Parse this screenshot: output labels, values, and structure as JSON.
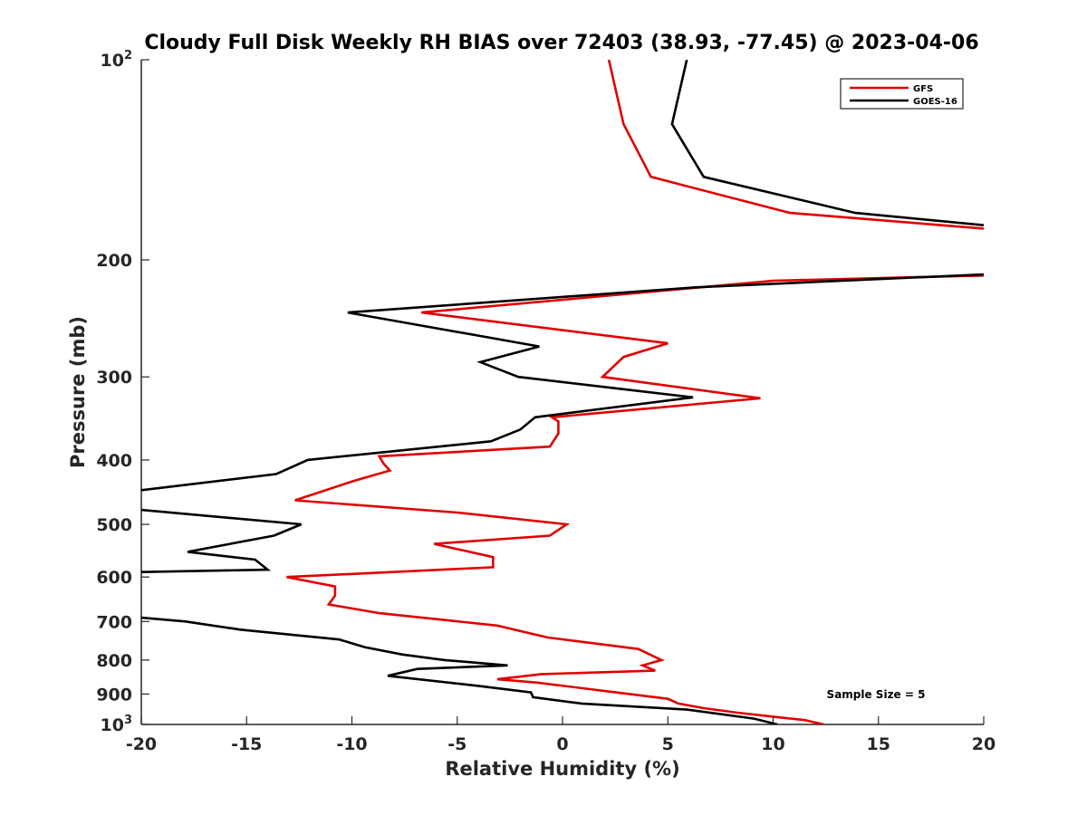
{
  "chart_data": {
    "type": "line",
    "title": "Cloudy Full Disk Weekly RH BIAS over 72403 (38.93, -77.45) @ 2023-04-06",
    "xlabel": "Relative Humidity (%)",
    "ylabel": "Pressure (mb)",
    "xlim": [
      -20,
      20
    ],
    "ylim": [
      100,
      1000
    ],
    "yscale": "log",
    "y_reversed": true,
    "grid": false,
    "legend_position": "top-right",
    "xticks": [
      -20,
      -15,
      -10,
      -5,
      0,
      5,
      10,
      15,
      20
    ],
    "yticks": [
      {
        "value": 100,
        "base": "10",
        "exp": "2"
      },
      {
        "value": 200,
        "label": "200"
      },
      {
        "value": 300,
        "label": "300"
      },
      {
        "value": 400,
        "label": "400"
      },
      {
        "value": 500,
        "label": "500"
      },
      {
        "value": 600,
        "label": "600"
      },
      {
        "value": 700,
        "label": "700"
      },
      {
        "value": 800,
        "label": "800"
      },
      {
        "value": 900,
        "label": "900"
      },
      {
        "value": 1000,
        "base": "10",
        "exp": "3"
      }
    ],
    "annotation": "Sample Size = 5",
    "series": [
      {
        "name": "GFS",
        "color": "#e00000",
        "points": [
          [
            2.2,
            100
          ],
          [
            2.9,
            125
          ],
          [
            4.2,
            150
          ],
          [
            10.8,
            170
          ],
          [
            20.5,
            180
          ],
          [
            20.5,
            211
          ],
          [
            10,
            215
          ],
          [
            -6.7,
            240
          ],
          [
            5,
            267
          ],
          [
            2.9,
            280
          ],
          [
            1.9,
            300
          ],
          [
            9.4,
            323
          ],
          [
            -0.5,
            345
          ],
          [
            -0.2,
            350
          ],
          [
            -0.2,
            365
          ],
          [
            -0.6,
            382
          ],
          [
            -8.7,
            395
          ],
          [
            -8.5,
            405
          ],
          [
            -8.2,
            415
          ],
          [
            -9.9,
            430
          ],
          [
            -12.7,
            460
          ],
          [
            -5,
            480
          ],
          [
            0.2,
            500
          ],
          [
            -0.6,
            520
          ],
          [
            -6.1,
            535
          ],
          [
            -3.3,
            560
          ],
          [
            -3.3,
            580
          ],
          [
            -13.1,
            600
          ],
          [
            -10.8,
            620
          ],
          [
            -10.8,
            640
          ],
          [
            -11.1,
            660
          ],
          [
            -8.7,
            680
          ],
          [
            -3.1,
            710
          ],
          [
            -0.7,
            740
          ],
          [
            3.6,
            770
          ],
          [
            4.7,
            800
          ],
          [
            3.8,
            815
          ],
          [
            4.4,
            830
          ],
          [
            -1,
            840
          ],
          [
            -3.1,
            855
          ],
          [
            -1.2,
            865
          ],
          [
            5,
            915
          ],
          [
            5.5,
            930
          ],
          [
            6.7,
            945
          ],
          [
            8.3,
            960
          ],
          [
            10.2,
            975
          ],
          [
            11.5,
            985
          ],
          [
            12.4,
            1000
          ]
        ]
      },
      {
        "name": "GOES-16",
        "color": "#000000",
        "points": [
          [
            5.9,
            100
          ],
          [
            5.2,
            125
          ],
          [
            6.7,
            150
          ],
          [
            13.9,
            170
          ],
          [
            20.5,
            178
          ],
          [
            20.5,
            210
          ],
          [
            6.3,
            220
          ],
          [
            -10.2,
            240
          ],
          [
            -1.1,
            270
          ],
          [
            -3.9,
            285
          ],
          [
            -2.1,
            300
          ],
          [
            6.2,
            322
          ],
          [
            -1.3,
            345
          ],
          [
            -2,
            360
          ],
          [
            -3.4,
            375
          ],
          [
            -12.1,
            400
          ],
          [
            -13.6,
            420
          ],
          [
            -20.2,
            445
          ],
          [
            -20.2,
            475
          ],
          [
            -12.4,
            500
          ],
          [
            -13.7,
            520
          ],
          [
            -17.8,
            550
          ],
          [
            -14.6,
            565
          ],
          [
            -14,
            585
          ],
          [
            -20.2,
            590
          ],
          [
            -20.2,
            690
          ],
          [
            -17.9,
            700
          ],
          [
            -15.3,
            720
          ],
          [
            -10.6,
            745
          ],
          [
            -9.4,
            765
          ],
          [
            -7.6,
            785
          ],
          [
            -5.6,
            800
          ],
          [
            -2.6,
            815
          ],
          [
            -6.9,
            825
          ],
          [
            -8.3,
            845
          ],
          [
            -4,
            875
          ],
          [
            -1.5,
            895
          ],
          [
            -1.4,
            910
          ],
          [
            0.9,
            930
          ],
          [
            5.9,
            950
          ],
          [
            9.1,
            980
          ],
          [
            10.2,
            1000
          ]
        ]
      }
    ]
  }
}
